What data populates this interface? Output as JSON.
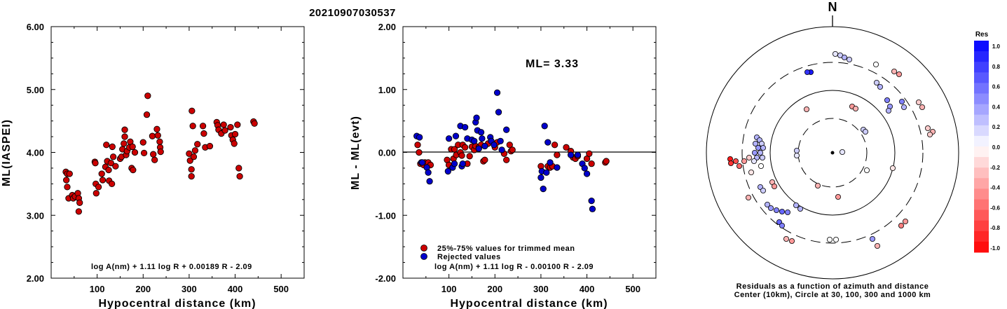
{
  "title": "20210907030537",
  "chart_data": [
    {
      "type": "scatter",
      "xlabel": "Hypocentral distance (km)",
      "ylabel": "ML(IASPEI)",
      "xlim": [
        0,
        550
      ],
      "ylim": [
        2.0,
        6.0
      ],
      "xticks": [
        "100",
        "200",
        "300",
        "400",
        "500"
      ],
      "yticks": [
        "2.00",
        "3.00",
        "4.00",
        "5.00",
        "6.00"
      ],
      "formula": "log A(nm) + 1.11 log R + 0.00189 R - 2.09",
      "series": [
        {
          "color": "#cc0000",
          "points": [
            [
              32,
              3.69
            ],
            [
              35,
              3.66
            ],
            [
              33,
              3.56
            ],
            [
              35,
              3.45
            ],
            [
              38,
              3.27
            ],
            [
              40,
              3.66
            ],
            [
              46,
              3.32
            ],
            [
              48,
              3.27
            ],
            [
              52,
              3.3
            ],
            [
              58,
              3.35
            ],
            [
              60,
              3.27
            ],
            [
              62,
              3.2
            ],
            [
              60,
              3.06
            ],
            [
              95,
              3.85
            ],
            [
              96,
              3.83
            ],
            [
              97,
              3.5
            ],
            [
              98,
              3.35
            ],
            [
              103,
              3.45
            ],
            [
              110,
              3.66
            ],
            [
              112,
              3.56
            ],
            [
              118,
              3.77
            ],
            [
              120,
              4.12
            ],
            [
              122,
              3.86
            ],
            [
              125,
              3.72
            ],
            [
              126,
              3.55
            ],
            [
              130,
              3.83
            ],
            [
              132,
              3.5
            ],
            [
              133,
              4.09
            ],
            [
              135,
              3.93
            ],
            [
              140,
              3.78
            ],
            [
              150,
              3.9
            ],
            [
              153,
              3.93
            ],
            [
              155,
              4.05
            ],
            [
              158,
              4.14
            ],
            [
              160,
              4.36
            ],
            [
              160,
              4.25
            ],
            [
              163,
              3.96
            ],
            [
              165,
              4.02
            ],
            [
              170,
              4.08
            ],
            [
              172,
              4.17
            ],
            [
              175,
              3.75
            ],
            [
              177,
              4.09
            ],
            [
              178,
              3.72
            ],
            [
              182,
              4.0
            ],
            [
              200,
              4.16
            ],
            [
              202,
              3.99
            ],
            [
              210,
              4.9
            ],
            [
              208,
              4.6
            ],
            [
              220,
              4.26
            ],
            [
              222,
              3.97
            ],
            [
              225,
              3.88
            ],
            [
              230,
              4.37
            ],
            [
              232,
              4.27
            ],
            [
              236,
              4.17
            ],
            [
              237,
              4.08
            ],
            [
              238,
              4.01
            ],
            [
              300,
              3.98
            ],
            [
              302,
              3.87
            ],
            [
              305,
              3.62
            ],
            [
              305,
              3.73
            ],
            [
              306,
              4.66
            ],
            [
              308,
              4.42
            ],
            [
              310,
              3.93
            ],
            [
              313,
              4.03
            ],
            [
              318,
              4.13
            ],
            [
              330,
              4.42
            ],
            [
              332,
              4.3
            ],
            [
              335,
              4.08
            ],
            [
              345,
              4.1
            ],
            [
              360,
              4.48
            ],
            [
              362,
              4.43
            ],
            [
              364,
              4.36
            ],
            [
              370,
              4.3
            ],
            [
              375,
              4.44
            ],
            [
              378,
              4.35
            ],
            [
              390,
              4.4
            ],
            [
              392,
              4.27
            ],
            [
              395,
              4.2
            ],
            [
              398,
              4.14
            ],
            [
              400,
              4.29
            ],
            [
              405,
              4.44
            ],
            [
              408,
              3.75
            ],
            [
              410,
              3.62
            ],
            [
              440,
              4.49
            ],
            [
              442,
              4.46
            ]
          ]
        }
      ]
    },
    {
      "type": "scatter",
      "xlabel": "Hypocentral distance (km)",
      "ylabel": "ML - ML(evt)",
      "xlim": [
        0,
        550
      ],
      "ylim": [
        -2.0,
        2.0
      ],
      "xticks": [
        "100",
        "200",
        "300",
        "400",
        "500"
      ],
      "yticks": [
        "-2.00",
        "-1.00",
        "0.00",
        "1.00",
        "2.00"
      ],
      "annotation": "ML= 3.33",
      "formula": "log A(nm) + 1.11 log R - 0.00100 R - 2.09",
      "legend_position": "bottom-left",
      "series": [
        {
          "name": "25%-75% values for trimmed mean",
          "color": "#cc0000",
          "points": [
            [
              32,
              0.12
            ],
            [
              35,
              0.0
            ],
            [
              38,
              -0.18
            ],
            [
              45,
              -0.2
            ],
            [
              48,
              -0.16
            ],
            [
              55,
              -0.16
            ],
            [
              60,
              -0.2
            ],
            [
              96,
              -0.12
            ],
            [
              100,
              -0.2
            ],
            [
              105,
              0.05
            ],
            [
              110,
              -0.1
            ],
            [
              112,
              0.05
            ],
            [
              116,
              -0.04
            ],
            [
              120,
              0.12
            ],
            [
              125,
              0.0
            ],
            [
              128,
              -0.05
            ],
            [
              130,
              0.12
            ],
            [
              135,
              0.08
            ],
            [
              140,
              -0.18
            ],
            [
              145,
              -0.06
            ],
            [
              150,
              0.09
            ],
            [
              155,
              0.04
            ],
            [
              158,
              0.1
            ],
            [
              165,
              0.08
            ],
            [
              170,
              0.12
            ],
            [
              175,
              -0.14
            ],
            [
              178,
              -0.12
            ],
            [
              185,
              0.14
            ],
            [
              200,
              0.08
            ],
            [
              205,
              0.16
            ],
            [
              220,
              -0.02
            ],
            [
              225,
              -0.12
            ],
            [
              232,
              0.12
            ],
            [
              235,
              0.02
            ],
            [
              238,
              0.04
            ],
            [
              300,
              -0.22
            ],
            [
              315,
              -0.22
            ],
            [
              320,
              -0.24
            ],
            [
              325,
              -0.22
            ],
            [
              330,
              0.12
            ],
            [
              335,
              -0.04
            ],
            [
              355,
              0.08
            ],
            [
              365,
              0.02
            ],
            [
              370,
              -0.08
            ],
            [
              375,
              -0.1
            ],
            [
              380,
              -0.06
            ],
            [
              400,
              -0.1
            ],
            [
              405,
              -0.02
            ],
            [
              410,
              -0.18
            ],
            [
              440,
              -0.16
            ],
            [
              442,
              -0.14
            ]
          ]
        },
        {
          "name": "Rejected values",
          "color": "#0000cc",
          "points": [
            [
              30,
              0.26
            ],
            [
              36,
              0.24
            ],
            [
              40,
              -0.16
            ],
            [
              42,
              -0.16
            ],
            [
              52,
              -0.24
            ],
            [
              55,
              -0.32
            ],
            [
              58,
              -0.46
            ],
            [
              98,
              -0.3
            ],
            [
              100,
              0.22
            ],
            [
              108,
              -0.24
            ],
            [
              112,
              -0.18
            ],
            [
              115,
              0.26
            ],
            [
              125,
              0.42
            ],
            [
              128,
              -0.22
            ],
            [
              130,
              -0.18
            ],
            [
              135,
              0.4
            ],
            [
              140,
              0.22
            ],
            [
              150,
              0.2
            ],
            [
              155,
              0.18
            ],
            [
              158,
              0.48
            ],
            [
              160,
              0.55
            ],
            [
              162,
              0.35
            ],
            [
              165,
              0.06
            ],
            [
              170,
              0.32
            ],
            [
              172,
              0.22
            ],
            [
              178,
              0.1
            ],
            [
              190,
              0.24
            ],
            [
              192,
              0.18
            ],
            [
              198,
              0.12
            ],
            [
              205,
              0.95
            ],
            [
              208,
              0.64
            ],
            [
              212,
              0.18
            ],
            [
              215,
              0.04
            ],
            [
              225,
              0.36
            ],
            [
              300,
              -0.4
            ],
            [
              302,
              -0.3
            ],
            [
              305,
              -0.58
            ],
            [
              308,
              0.42
            ],
            [
              312,
              -0.32
            ],
            [
              315,
              0.16
            ],
            [
              320,
              -0.16
            ],
            [
              335,
              -0.24
            ],
            [
              365,
              -0.04
            ],
            [
              380,
              -0.04
            ],
            [
              390,
              -0.18
            ],
            [
              395,
              -0.25
            ],
            [
              400,
              -0.34
            ],
            [
              410,
              -0.77
            ],
            [
              412,
              -0.9
            ]
          ]
        }
      ]
    }
  ],
  "polar": {
    "north_label": "N",
    "caption_line1": "Residuals as a function of azimuth and distance",
    "caption_line2": "Center (10km), Circle at 30, 100, 300 and 1000 km",
    "colorbar_title": "Res",
    "colorbar_ticks": [
      "1.0",
      "0.8",
      "0.6",
      "0.4",
      "0.2",
      "0.0",
      "-0.2",
      "-0.4",
      "-0.6",
      "-0.8",
      "-1.0"
    ],
    "stations": [
      [
        1192,
        77,
        0.1
      ],
      [
        1199,
        79,
        0.2
      ],
      [
        1205,
        82,
        0.3
      ],
      [
        1212,
        85,
        0.2
      ],
      [
        1250,
        92,
        0.0
      ],
      [
        1276,
        102,
        -0.3
      ],
      [
        1283,
        106,
        -0.4
      ],
      [
        1157,
        103,
        0.9
      ],
      [
        1152,
        103,
        0.8
      ],
      [
        1251,
        118,
        0.2
      ],
      [
        1256,
        124,
        0.3
      ],
      [
        1266,
        143,
        0.5
      ],
      [
        1270,
        152,
        0.4
      ],
      [
        1268,
        158,
        0.3
      ],
      [
        1287,
        145,
        0.5
      ],
      [
        1290,
        153,
        0.3
      ],
      [
        1311,
        146,
        -0.2
      ],
      [
        1316,
        153,
        -0.3
      ],
      [
        1216,
        152,
        -0.4
      ],
      [
        1221,
        155,
        -0.3
      ],
      [
        1151,
        156,
        -0.3
      ],
      [
        1232,
        185,
        0.2
      ],
      [
        1235,
        188,
        0.2
      ],
      [
        1324,
        183,
        -0.2
      ],
      [
        1331,
        188,
        -0.3
      ],
      [
        1327,
        192,
        -0.2
      ],
      [
        1202,
        217,
        0.1
      ],
      [
        1080,
        196,
        0.3
      ],
      [
        1084,
        200,
        0.3
      ],
      [
        1078,
        205,
        0.3
      ],
      [
        1087,
        205,
        0.2
      ],
      [
        1082,
        211,
        0.4
      ],
      [
        1089,
        211,
        0.3
      ],
      [
        1077,
        218,
        0.4
      ],
      [
        1085,
        218,
        0.3
      ],
      [
        1080,
        225,
        0.3
      ],
      [
        1088,
        225,
        0.2
      ],
      [
        1076,
        230,
        0.1
      ],
      [
        1137,
        215,
        0.2
      ],
      [
        1137,
        222,
        0.1
      ],
      [
        1042,
        227,
        -0.9
      ],
      [
        1043,
        233,
        -0.8
      ],
      [
        1050,
        230,
        -0.7
      ],
      [
        1055,
        237,
        -0.6
      ],
      [
        1062,
        230,
        -0.4
      ],
      [
        1069,
        225,
        -0.2
      ],
      [
        1072,
        246,
        -0.1
      ],
      [
        1086,
        237,
        0.0
      ],
      [
        1237,
        243,
        0.0
      ],
      [
        1274,
        240,
        -0.1
      ],
      [
        1085,
        267,
        0.3
      ],
      [
        1089,
        272,
        0.2
      ],
      [
        1102,
        260,
        -0.3
      ],
      [
        1105,
        266,
        -0.4
      ],
      [
        1167,
        265,
        -0.3
      ],
      [
        1196,
        281,
        -0.4
      ],
      [
        1068,
        282,
        -0.3
      ],
      [
        1095,
        292,
        0.3
      ],
      [
        1100,
        297,
        0.4
      ],
      [
        1108,
        300,
        0.5
      ],
      [
        1116,
        302,
        0.6
      ],
      [
        1124,
        303,
        0.5
      ],
      [
        1112,
        317,
        0.6
      ],
      [
        1116,
        322,
        0.5
      ],
      [
        1136,
        293,
        0.3
      ],
      [
        1142,
        298,
        0.3
      ],
      [
        1292,
        316,
        -0.4
      ],
      [
        1286,
        322,
        -0.5
      ],
      [
        1184,
        342,
        0.0
      ],
      [
        1193,
        342,
        0.0
      ],
      [
        1245,
        341,
        0.4
      ],
      [
        1252,
        351,
        -0.3
      ],
      [
        1122,
        341,
        -0.3
      ],
      [
        1130,
        344,
        -0.4
      ]
    ]
  }
}
